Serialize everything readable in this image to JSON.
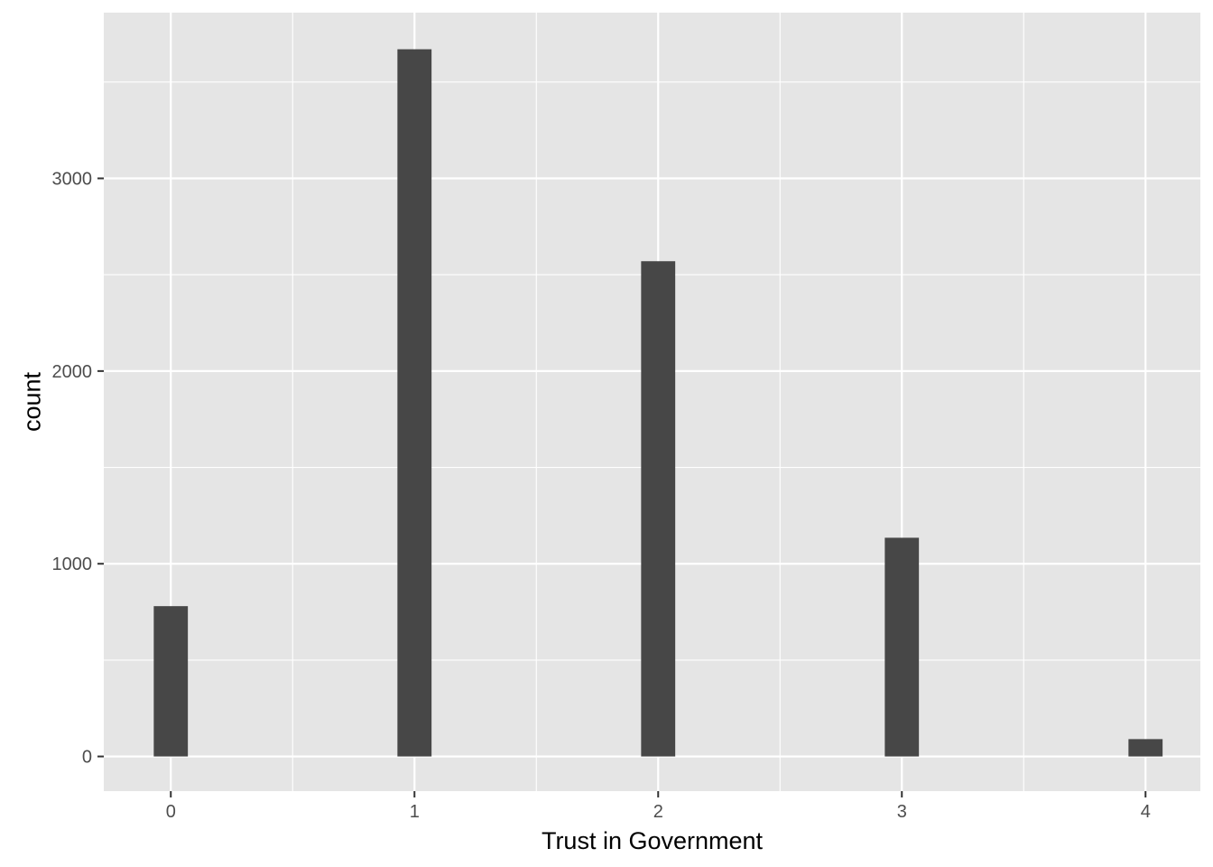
{
  "chart_data": {
    "type": "bar",
    "title": "",
    "xlabel": "Trust in Government",
    "ylabel": "count",
    "x": [
      0,
      1,
      2,
      3,
      4
    ],
    "values": [
      780,
      3670,
      2570,
      1135,
      90
    ],
    "xlim": [
      -0.275,
      4.225
    ],
    "ylim": [
      -180,
      3860
    ],
    "x_ticks": [
      0,
      1,
      2,
      3,
      4
    ],
    "y_ticks": [
      0,
      1000,
      2000,
      3000
    ],
    "y_minor_ticks": [
      500,
      1500,
      2500,
      3500
    ],
    "x_minor_ticks": [
      0.5,
      1.5,
      2.5,
      3.5
    ],
    "bar_width": 0.14,
    "grid": true,
    "legend": "none",
    "colors": {
      "panel": "#e5e5e5",
      "bar": "#474747",
      "grid": "#ffffff",
      "tick_text": "#4d4d4d",
      "tick_mark": "#333333"
    }
  }
}
